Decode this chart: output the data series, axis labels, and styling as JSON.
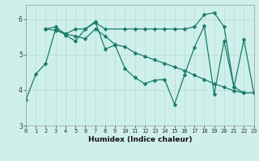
{
  "xlabel": "Humidex (Indice chaleur)",
  "bg_color": "#cff0ea",
  "line_color": "#1a7a6e",
  "grid_color": "#b0ddd5",
  "line1_x": [
    0,
    1,
    2,
    3,
    4,
    5,
    6,
    7,
    8,
    9,
    10,
    11,
    12,
    13,
    14,
    15,
    16,
    17,
    18,
    19,
    20,
    21,
    22,
    23
  ],
  "line1_y": [
    3.72,
    4.45,
    4.75,
    5.72,
    5.55,
    5.38,
    5.72,
    5.93,
    5.15,
    5.27,
    4.6,
    4.35,
    4.18,
    4.28,
    4.3,
    3.6,
    4.42,
    5.2,
    5.8,
    3.88,
    5.38,
    4.08,
    3.92,
    3.92
  ],
  "line2_x": [
    2,
    3,
    4,
    5,
    6,
    7,
    8,
    10,
    11,
    12,
    13,
    14,
    15,
    16,
    17,
    18,
    19,
    20,
    21,
    22,
    23
  ],
  "line2_y": [
    5.72,
    5.78,
    5.58,
    5.72,
    5.72,
    5.9,
    5.72,
    5.72,
    5.72,
    5.72,
    5.72,
    5.72,
    5.72,
    5.72,
    5.78,
    6.12,
    6.18,
    5.78,
    4.08,
    5.42,
    3.92
  ],
  "line3_x": [
    2,
    3,
    4,
    5,
    6,
    7,
    8,
    9,
    10,
    11,
    12,
    13,
    14,
    15,
    16,
    17,
    18,
    19,
    20,
    21,
    22,
    23
  ],
  "line3_y": [
    5.72,
    5.68,
    5.58,
    5.52,
    5.45,
    5.72,
    5.52,
    5.28,
    5.22,
    5.05,
    4.95,
    4.85,
    4.75,
    4.65,
    4.55,
    4.42,
    4.3,
    4.18,
    4.08,
    3.98,
    3.92,
    3.92
  ],
  "xlim": [
    0,
    23
  ],
  "ylim": [
    3.0,
    6.4
  ],
  "yticks": [
    3,
    4,
    5,
    6
  ],
  "xticks": [
    0,
    1,
    2,
    3,
    4,
    5,
    6,
    7,
    8,
    9,
    10,
    11,
    12,
    13,
    14,
    15,
    16,
    17,
    18,
    19,
    20,
    21,
    22,
    23
  ],
  "markersize": 2.5,
  "linewidth": 0.9,
  "tick_fontsize": 5.0,
  "xlabel_fontsize": 6.5
}
